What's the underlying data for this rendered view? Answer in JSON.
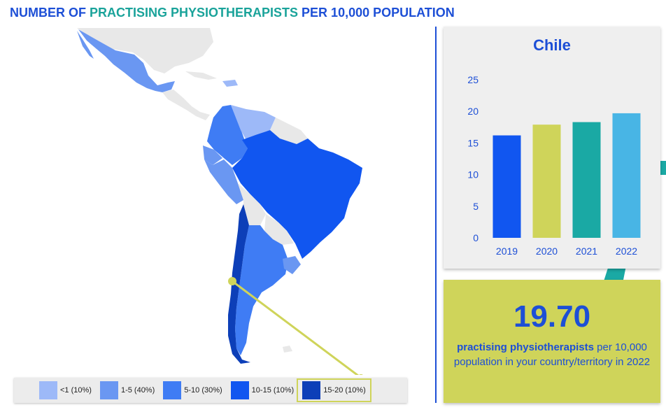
{
  "title": {
    "part1": "NUMBER OF ",
    "part2": "PRACTISING PHYSIOTHERAPISTS",
    "part3": " PER 10,000 POPULATION"
  },
  "colors": {
    "title_blue": "#1d4fd6",
    "title_teal": "#1aa39a",
    "nodata": "#e8e8e8",
    "lt1": "#9db9f8",
    "c1_5": "#6a97f2",
    "c5_10": "#3f7cf4",
    "c10_15": "#1156f0",
    "c15_20": "#0d3fb8",
    "highlight": "#cfd45a"
  },
  "legend": [
    {
      "label": "<1 (10%)",
      "color": "#9db9f8"
    },
    {
      "label": "1-5 (40%)",
      "color": "#6a97f2"
    },
    {
      "label": "5-10 (30%)",
      "color": "#3f7cf4"
    },
    {
      "label": "10-15 (10%)",
      "color": "#1156f0"
    },
    {
      "label": "15-20 (10%)",
      "color": "#0d3fb8",
      "selected": true
    }
  ],
  "selected_country": "Chile",
  "chart_data": {
    "type": "bar",
    "title": "Chile",
    "categories": [
      "2019",
      "2020",
      "2021",
      "2022"
    ],
    "values": [
      16.2,
      17.9,
      18.3,
      19.7
    ],
    "colors": [
      "#1156f0",
      "#cfd45a",
      "#1aa9a4",
      "#48b5e5"
    ],
    "yticks": [
      0,
      5,
      10,
      15,
      20,
      25
    ],
    "ylim": [
      0,
      25
    ],
    "grid": false,
    "legend": "none"
  },
  "summary": {
    "value": "19.70",
    "text_bold": "practising physiotherapists",
    "text_rest": " per 10,000 population in your country/territory in 2022"
  }
}
